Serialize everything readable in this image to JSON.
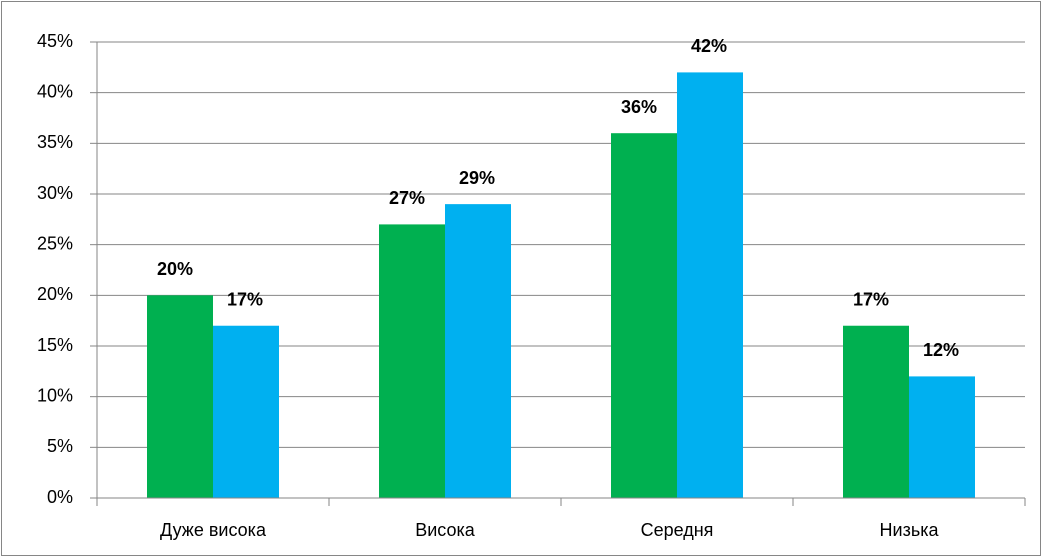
{
  "chart_data": {
    "type": "bar",
    "categories": [
      "Дуже висока",
      "Висока",
      "Середня",
      "Низька"
    ],
    "series": [
      {
        "color": "#00b050",
        "values": [
          20,
          27,
          36,
          17
        ],
        "value_labels": [
          "20%",
          "27%",
          "36%",
          "17%"
        ]
      },
      {
        "color": "#00b0f0",
        "values": [
          17,
          29,
          42,
          12
        ],
        "value_labels": [
          "17%",
          "29%",
          "42%",
          "12%"
        ]
      }
    ],
    "ylim": [
      0,
      45
    ],
    "yticks": [
      {
        "value": 0,
        "label": "0%"
      },
      {
        "value": 5,
        "label": "5%"
      },
      {
        "value": 10,
        "label": "10%"
      },
      {
        "value": 15,
        "label": "15%"
      },
      {
        "value": 20,
        "label": "20%"
      },
      {
        "value": 25,
        "label": "25%"
      },
      {
        "value": 30,
        "label": "30%"
      },
      {
        "value": 35,
        "label": "35%"
      },
      {
        "value": 40,
        "label": "40%"
      },
      {
        "value": 45,
        "label": "45%"
      }
    ],
    "grid": true
  }
}
